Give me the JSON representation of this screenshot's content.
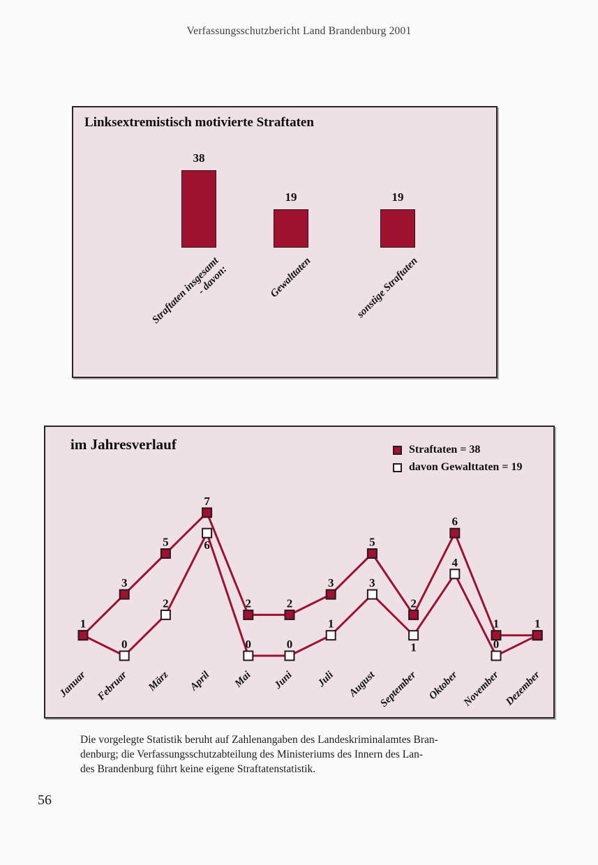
{
  "page": {
    "header": "Verfassungsschutzbericht Land Brandenburg 2001",
    "page_number": "56",
    "footnote_lines": [
      "Die vorgelegte Statistik beruht auf Zahlenangaben des Landeskriminalamtes Bran-",
      "denburg; die Verfassungsschutzabteilung des Ministeriums des Innern des Lan-",
      "des Brandenburg führt keine eigene Straftatenstatistik."
    ]
  },
  "colors": {
    "accent": "#9e1230",
    "panel_background": "#ede1e5",
    "marker_outline": "#2e1520",
    "panel_border": "#262626"
  },
  "chart_data": [
    {
      "type": "bar",
      "title": "Linksextremistisch motivierte Straftaten",
      "categories": [
        "Straftaten insgesamt\n- davon:",
        "Gewalttaten",
        "sonstige Straftaten"
      ],
      "values": [
        38,
        19,
        19
      ],
      "bar_color": "#9e1230",
      "ylim": [
        0,
        40
      ],
      "grid": false,
      "value_labels": true
    },
    {
      "type": "line",
      "title": "im Jahresverlauf",
      "categories": [
        "Januar",
        "Februar",
        "März",
        "April",
        "Mai",
        "Juni",
        "Juli",
        "August",
        "September",
        "Oktober",
        "November",
        "Dezember"
      ],
      "series": [
        {
          "name": "Straftaten = 38",
          "marker": "filled",
          "values": [
            1,
            3,
            5,
            7,
            2,
            2,
            3,
            5,
            2,
            6,
            1,
            1
          ],
          "label_side": [
            "above",
            "above",
            "above",
            "above",
            "above",
            "above",
            "above",
            "above",
            "above",
            "above",
            "above",
            "above"
          ]
        },
        {
          "name": "davon Gewalttaten = 19",
          "marker": "open",
          "values": [
            1,
            0,
            2,
            6,
            0,
            0,
            1,
            3,
            1,
            4,
            0,
            1
          ],
          "label_side": [
            "hidden",
            "above",
            "above",
            "below",
            "above",
            "above",
            "above",
            "above",
            "below",
            "above",
            "above",
            "hidden"
          ]
        }
      ],
      "line_color": "#9e1230",
      "ylim": [
        0,
        7.5
      ],
      "grid": false,
      "legend_position": "top-right"
    }
  ]
}
